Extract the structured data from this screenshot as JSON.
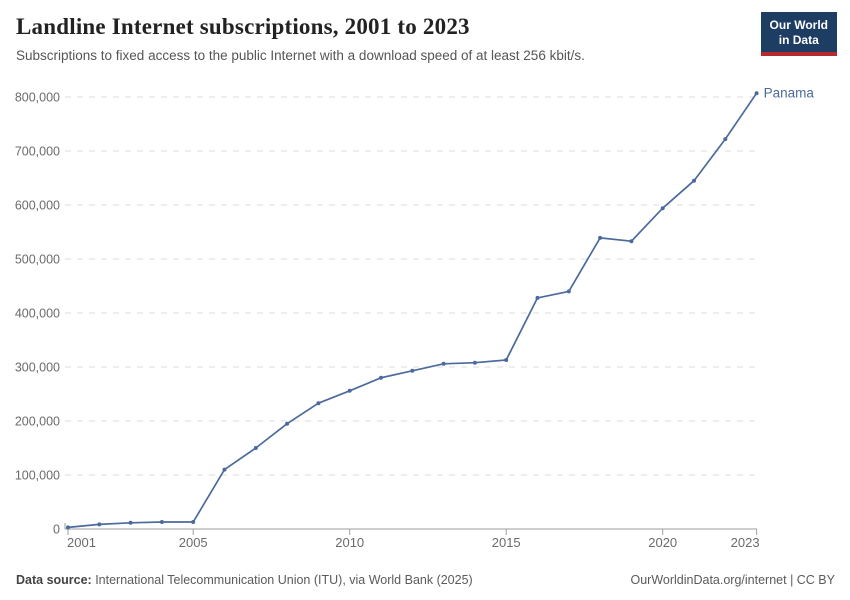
{
  "header": {
    "title": "Landline Internet subscriptions, 2001 to 2023",
    "subtitle": "Subscriptions to fixed access to the public Internet with a download speed of at least 256 kbit/s.",
    "logo": {
      "line1": "Our World",
      "line2": "in Data"
    }
  },
  "chart_data": {
    "type": "line",
    "title": "Landline Internet subscriptions, 2001 to 2023",
    "xlabel": "",
    "ylabel": "",
    "x": [
      2001,
      2002,
      2003,
      2004,
      2005,
      2006,
      2007,
      2008,
      2009,
      2010,
      2011,
      2012,
      2013,
      2014,
      2015,
      2016,
      2017,
      2018,
      2019,
      2020,
      2021,
      2022,
      2023
    ],
    "series": [
      {
        "name": "Panama",
        "color": "#4C6A9C",
        "values": [
          3000,
          8500,
          11500,
          13000,
          13000,
          110000,
          150000,
          195000,
          233000,
          256000,
          280000,
          293000,
          306000,
          308000,
          313000,
          428000,
          440000,
          539000,
          533000,
          594000,
          645000,
          722000,
          807000
        ]
      }
    ],
    "xlim": [
      2001,
      2023
    ],
    "ylim": [
      0,
      800000
    ],
    "ytick_step": 100000,
    "yticks": [
      0,
      100000,
      200000,
      300000,
      400000,
      500000,
      600000,
      700000,
      800000
    ],
    "xticks": [
      2001,
      2005,
      2010,
      2015,
      2020,
      2023
    ],
    "grid": "horizontal dashed",
    "legend_position": "series label at right end of line",
    "markers": "point at every year"
  },
  "footer": {
    "datasource_label": "Data source:",
    "datasource_text": " International Telecommunication Union (ITU), via World Bank (2025)",
    "right_text": "OurWorldinData.org/internet | CC BY"
  },
  "colors": {
    "line": "#4C6A9C",
    "grid": "#dcdcdc",
    "axis": "#9e9e9e",
    "tick_label": "#6b6b6b",
    "title": "#222222",
    "subtitle": "#555555",
    "logo_bg": "#1d3d63",
    "logo_red": "#b5292f"
  }
}
